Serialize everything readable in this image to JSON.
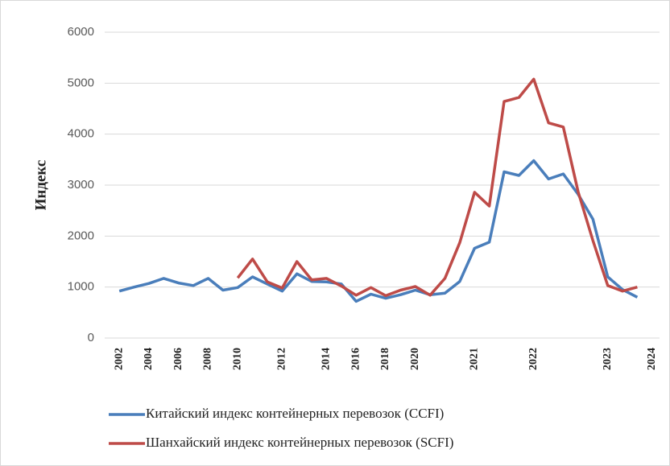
{
  "chart_data": {
    "type": "line",
    "y_label": "Индекс",
    "categories": [
      "2002",
      null,
      "2004",
      null,
      "2006",
      null,
      "2008",
      null,
      "2010",
      null,
      null,
      "2012",
      null,
      null,
      "2014",
      null,
      "2016",
      null,
      "2018",
      null,
      "2020",
      null,
      null,
      null,
      "2021",
      null,
      null,
      null,
      "2022",
      null,
      null,
      null,
      null,
      "2023",
      null,
      null,
      "2024"
    ],
    "series": [
      {
        "name": "Китайский индекс контейнерных перевозок (CCFI)",
        "color": "#4a7ebb",
        "values": [
          920,
          1000,
          1070,
          1170,
          1080,
          1030,
          1170,
          940,
          990,
          1200,
          1060,
          920,
          1260,
          1110,
          1100,
          1060,
          720,
          860,
          780,
          850,
          940,
          850,
          880,
          1110,
          1760,
          1880,
          3260,
          3190,
          3480,
          3120,
          3220,
          2820,
          2330,
          1200,
          950,
          800,
          null
        ]
      },
      {
        "name": "Шанхайский индекс контейнерных перевозок (SCFI)",
        "color": "#be4b48",
        "values": [
          null,
          null,
          null,
          null,
          null,
          null,
          null,
          null,
          1180,
          1550,
          1100,
          980,
          1500,
          1140,
          1170,
          1020,
          840,
          990,
          830,
          940,
          1010,
          840,
          1170,
          1870,
          2860,
          2590,
          4640,
          4720,
          5080,
          4220,
          4140,
          2870,
          1910,
          1030,
          920,
          1000,
          null
        ]
      }
    ],
    "ylim": [
      0,
      6000
    ],
    "yticks": [
      0,
      1000,
      2000,
      3000,
      4000,
      5000,
      6000
    ],
    "grid": true
  }
}
